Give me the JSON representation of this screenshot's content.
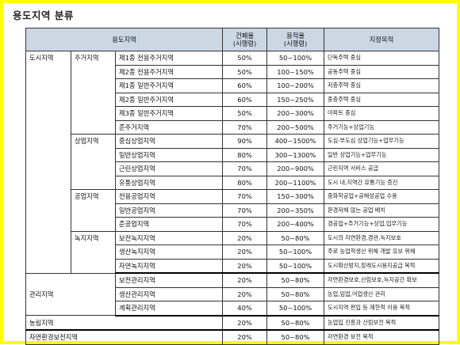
{
  "page_title": "용도지역 분류",
  "header": {
    "zone": "용도지역",
    "bcr_line1": "건폐율",
    "bcr_line2": "(시행령)",
    "far_line1": "용적율",
    "far_line2": "(시행령)",
    "purpose": "지정목적"
  },
  "groups": {
    "urban": "도시지역",
    "residential": "주거지역",
    "commercial": "상업지역",
    "industrial": "공업지역",
    "green": "녹지지역",
    "management": "관리지역",
    "agricultural": "농림지역",
    "conservation": "자연환경보전지역"
  },
  "rows": [
    {
      "zone": "제1종 전용주거지역",
      "bcr": "50%",
      "far": "50~100%",
      "purpose": "단독주택 중심"
    },
    {
      "zone": "제2종 전용주거지역",
      "bcr": "50%",
      "far": "100~150%",
      "purpose": "공동주택 중심"
    },
    {
      "zone": "제1종 일반주거지역",
      "bcr": "60%",
      "far": "100~200%",
      "purpose": "저층주택 중심"
    },
    {
      "zone": "제2종 일반주거지역",
      "bcr": "60%",
      "far": "150~250%",
      "purpose": "중층주택 중심"
    },
    {
      "zone": "제3종 일반주거지역",
      "bcr": "50%",
      "far": "200~300%",
      "purpose": "아파트 중심"
    },
    {
      "zone": "준주거지역",
      "bcr": "70%",
      "far": "200~500%",
      "purpose": "주거기능+상업기능"
    },
    {
      "zone": "중심상업지역",
      "bcr": "90%",
      "far": "400~1500%",
      "purpose": "도심·부도심 상업기능+업무기능"
    },
    {
      "zone": "일반상업지역",
      "bcr": "80%",
      "far": "300~1300%",
      "purpose": "일반 상업기능+업무기능"
    },
    {
      "zone": "근린상업지역",
      "bcr": "70%",
      "far": "200~900%",
      "purpose": "근린지역 서비스 공급"
    },
    {
      "zone": "유통상업지역",
      "bcr": "80%",
      "far": "200~1100%",
      "purpose": "도시 내,지역간 유통기능 증진"
    },
    {
      "zone": "전용공업지역",
      "bcr": "70%",
      "far": "150~300%",
      "purpose": "중화학공업+공해성공업 수용"
    },
    {
      "zone": "일반공업지역",
      "bcr": "70%",
      "far": "200~350%",
      "purpose": "환경저해 않는 공업 배치"
    },
    {
      "zone": "준공업지역",
      "bcr": "70%",
      "far": "200~400%",
      "purpose": "경공업+주거기능+상업,업무기능"
    },
    {
      "zone": "보전녹지지역",
      "bcr": "20%",
      "far": "50~80%",
      "purpose": "도시의 자연환경,경관,녹지보호"
    },
    {
      "zone": "생산녹지지역",
      "bcr": "20%",
      "far": "50~100%",
      "purpose": "주로 농업적생산 위해 개발 유보 위해"
    },
    {
      "zone": "자연녹지지역",
      "bcr": "20%",
      "far": "50~100%",
      "purpose": "도시확산방지,장래도시용지공급 목적"
    },
    {
      "zone": "보전관리지역",
      "bcr": "20%",
      "far": "50~80%",
      "purpose": "자연환경보호,산림보호,녹지공간 확보"
    },
    {
      "zone": "생산관리지역",
      "bcr": "20%",
      "far": "50~80%",
      "purpose": "농업,임업,어업생산 관리"
    },
    {
      "zone": "계획관리지역",
      "bcr": "40%",
      "far": "50~100%",
      "purpose": "도시지역 편입 등 제한적 이용 목적"
    },
    {
      "zone": "",
      "bcr": "20%",
      "far": "50~80%",
      "purpose": "농업입 진흥과 산림보전 목적"
    },
    {
      "zone": "",
      "bcr": "20%",
      "far": "50~80%",
      "purpose": "자연환경 보전 목적"
    }
  ]
}
